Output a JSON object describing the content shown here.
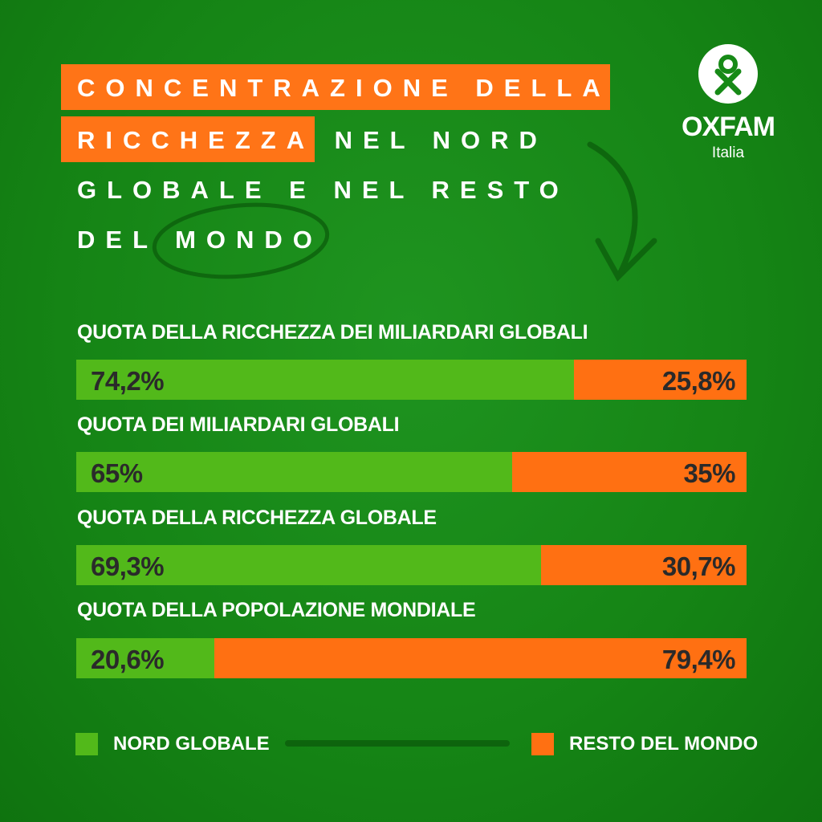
{
  "title": {
    "line1": "CONCENTRAZIONE DELLA",
    "line2a": "RICCHEZZA",
    "line2b": "NEL NORD",
    "line3": "GLOBALE E NEL RESTO",
    "line4a": "DEL",
    "line4b": "MONDO"
  },
  "logo": {
    "name": "OXFAM",
    "sub": "Italia"
  },
  "colors": {
    "background": "#178a17",
    "nord": "#52b91a",
    "resto": "#ff7012",
    "highlight": "#ff7417"
  },
  "chart_data": {
    "type": "bar",
    "orientation": "horizontal-stacked-100",
    "categories": [
      "QUOTA DELLA RICCHEZZA DEI MILIARDARI GLOBALI",
      "QUOTA DEI MILIARDARI GLOBALI",
      "QUOTA DELLA RICCHEZZA GLOBALE",
      "QUOTA DELLA POPOLAZIONE MONDIALE"
    ],
    "series": [
      {
        "name": "NORD GLOBALE",
        "values": [
          74.2,
          65,
          69.3,
          20.6
        ],
        "labels": [
          "74,2%",
          "65%",
          "69,3%",
          "20,6%"
        ]
      },
      {
        "name": "RESTO DEL MONDO",
        "values": [
          25.8,
          35,
          30.7,
          79.4
        ],
        "labels": [
          "25,8%",
          "35%",
          "30,7%",
          "79,4%"
        ]
      }
    ],
    "xlim": [
      0,
      100
    ],
    "legend": "bottom"
  }
}
